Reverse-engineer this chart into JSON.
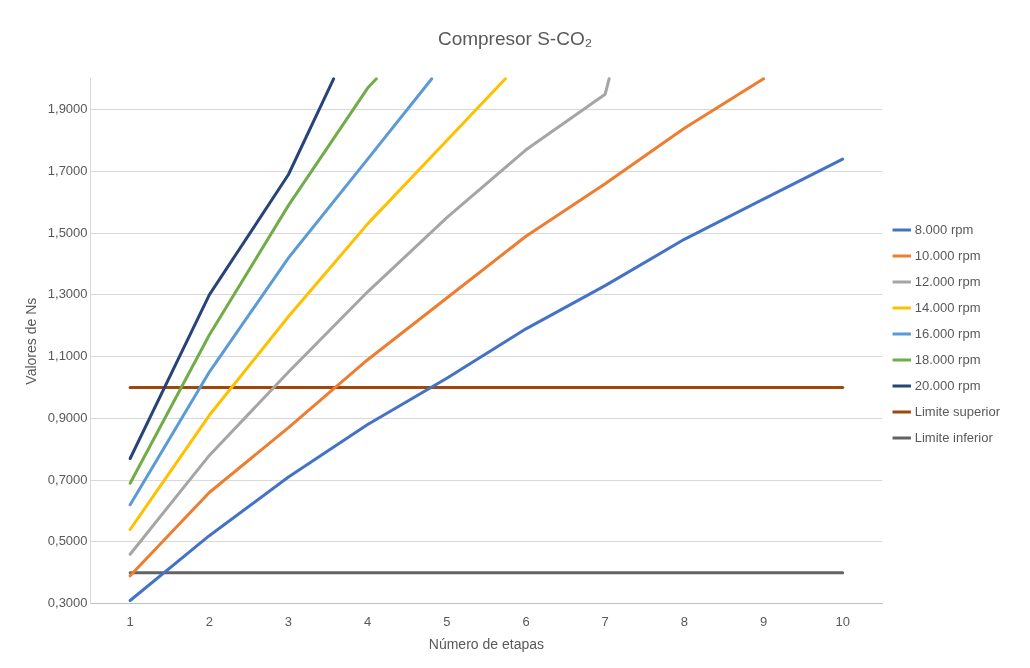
{
  "chart_data": {
    "type": "line",
    "title": "Compresor S-CO₂",
    "xlabel": "Número de etapas",
    "ylabel": "Valores de Ns",
    "xlim": [
      0.5,
      10.5
    ],
    "xticks": [
      1,
      2,
      3,
      4,
      5,
      6,
      7,
      8,
      9,
      10
    ],
    "ylim": [
      0.3,
      2.0
    ],
    "yticks": [
      {
        "value": 0.3,
        "label": "0,3000"
      },
      {
        "value": 0.5,
        "label": "0,5000"
      },
      {
        "value": 0.7,
        "label": "0,7000"
      },
      {
        "value": 0.9,
        "label": "0,9000"
      },
      {
        "value": 1.1,
        "label": "1,1000"
      },
      {
        "value": 1.3,
        "label": "1,3000"
      },
      {
        "value": 1.5,
        "label": "1,5000"
      },
      {
        "value": 1.7,
        "label": "1,7000"
      },
      {
        "value": 1.9,
        "label": "1,9000"
      }
    ],
    "grid": "y",
    "legend": "right",
    "marker": "none",
    "line_style": "solid",
    "series": [
      {
        "name": "8.000 rpm",
        "color": "#4472c4",
        "x": [
          1,
          2,
          3,
          4,
          5,
          6,
          7,
          8,
          9,
          10
        ],
        "values": [
          0.31,
          0.52,
          0.71,
          0.88,
          1.03,
          1.19,
          1.33,
          1.48,
          1.61,
          1.74
        ]
      },
      {
        "name": "10.000 rpm",
        "color": "#ed7d31",
        "x": [
          1,
          2,
          3,
          4,
          5,
          6,
          7,
          8,
          9
        ],
        "values": [
          0.39,
          0.66,
          0.87,
          1.09,
          1.29,
          1.49,
          1.66,
          1.84,
          2.0
        ]
      },
      {
        "name": "12.000 rpm",
        "color": "#a5a5a5",
        "x": [
          1,
          2,
          3,
          4,
          5,
          6,
          7,
          7.05
        ],
        "values": [
          0.46,
          0.78,
          1.05,
          1.31,
          1.55,
          1.77,
          1.95,
          2.0
        ]
      },
      {
        "name": "14.000 rpm",
        "color": "#ffc000",
        "x": [
          1,
          2,
          3,
          4,
          5,
          5.74
        ],
        "values": [
          0.54,
          0.91,
          1.23,
          1.53,
          1.8,
          2.0
        ]
      },
      {
        "name": "16.000 rpm",
        "color": "#5b9bd5",
        "x": [
          1,
          2,
          3,
          4,
          4.81
        ],
        "values": [
          0.62,
          1.05,
          1.42,
          1.74,
          2.0
        ]
      },
      {
        "name": "18.000 rpm",
        "color": "#70ad47",
        "x": [
          1,
          2,
          3,
          4,
          4.11
        ],
        "values": [
          0.69,
          1.17,
          1.59,
          1.97,
          2.0
        ]
      },
      {
        "name": "20.000 rpm",
        "color": "#264478",
        "x": [
          1,
          2,
          3,
          3.57
        ],
        "values": [
          0.77,
          1.3,
          1.69,
          2.0
        ]
      },
      {
        "name": "Limite superior",
        "color": "#9e480e",
        "x": [
          1,
          2,
          3,
          4,
          5,
          6,
          7,
          8,
          9,
          10
        ],
        "values": [
          1.0,
          1.0,
          1.0,
          1.0,
          1.0,
          1.0,
          1.0,
          1.0,
          1.0,
          1.0
        ]
      },
      {
        "name": "Limite inferior",
        "color": "#636363",
        "x": [
          1,
          2,
          3,
          4,
          5,
          6,
          7,
          8,
          9,
          10
        ],
        "values": [
          0.4,
          0.4,
          0.4,
          0.4,
          0.4,
          0.4,
          0.4,
          0.4,
          0.4,
          0.4
        ]
      }
    ]
  }
}
